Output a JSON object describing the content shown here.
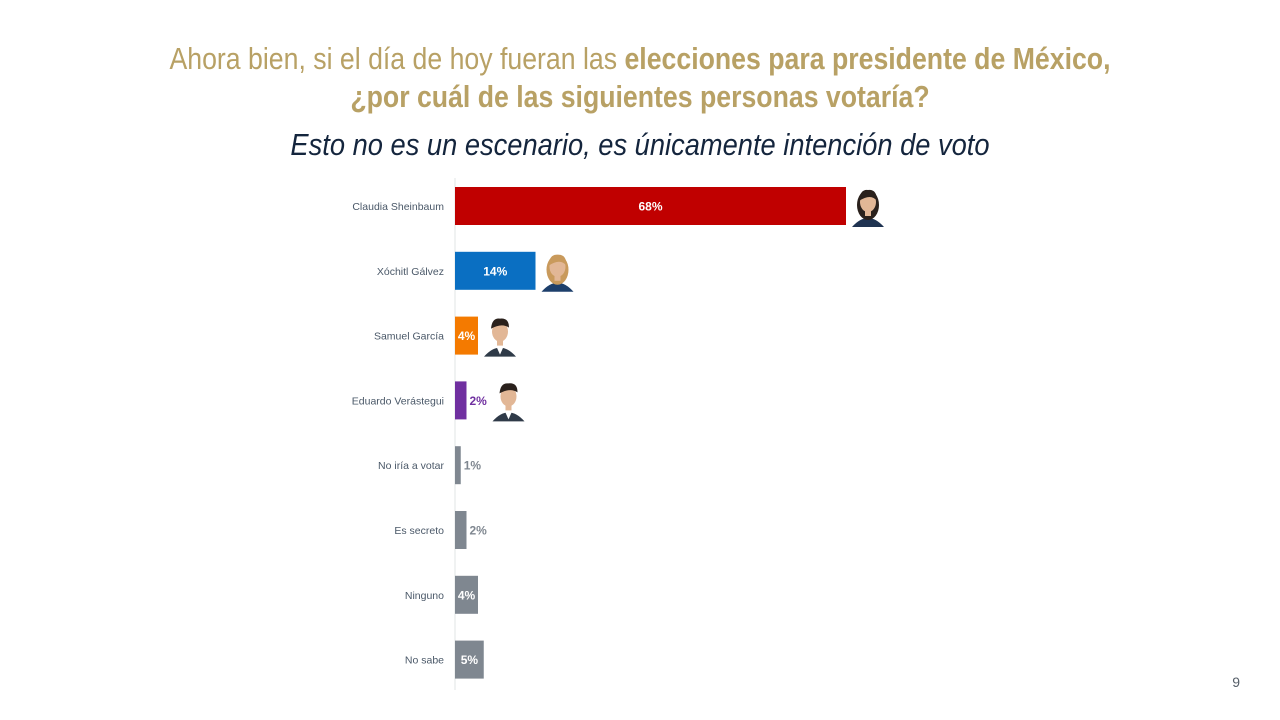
{
  "header": {
    "title_plain": "Ahora bien, si el día de hoy fueran las ",
    "title_bold_1": "elecciones para presidente de México,",
    "title_bold_2": "¿por cuál de las siguientes personas votaría?",
    "subtitle": "Esto no es un escenario, es únicamente intención de voto"
  },
  "chart_data": {
    "type": "bar",
    "orientation": "horizontal",
    "categories": [
      "Claudia Sheinbaum",
      "Xóchitl Gálvez",
      "Samuel García",
      "Eduardo Verástegui",
      "No iría a votar",
      "Es secreto",
      "Ninguno",
      "No sabe"
    ],
    "values": [
      68,
      14,
      4,
      2,
      1,
      2,
      4,
      5
    ],
    "value_labels": [
      "68%",
      "14%",
      "4%",
      "2%",
      "1%",
      "2%",
      "4%",
      "5%"
    ],
    "colors": [
      "#c00000",
      "#0a6fc2",
      "#f47a00",
      "#7030a0",
      "#7f8790",
      "#7f8790",
      "#7f8790",
      "#7f8790"
    ],
    "label_colors": [
      "#ffffff",
      "#ffffff",
      "#ffffff",
      "#7030a0",
      "#7f8790",
      "#7f8790",
      "#ffffff",
      "#ffffff"
    ],
    "photos": [
      "woman-dark-hair",
      "woman-blonde",
      "man-dark-hair",
      "man-dark-hair",
      "",
      "",
      "",
      ""
    ],
    "xlim": [
      0,
      100
    ],
    "grid": false,
    "legend": "none"
  },
  "footer": {
    "page_number": "9"
  }
}
